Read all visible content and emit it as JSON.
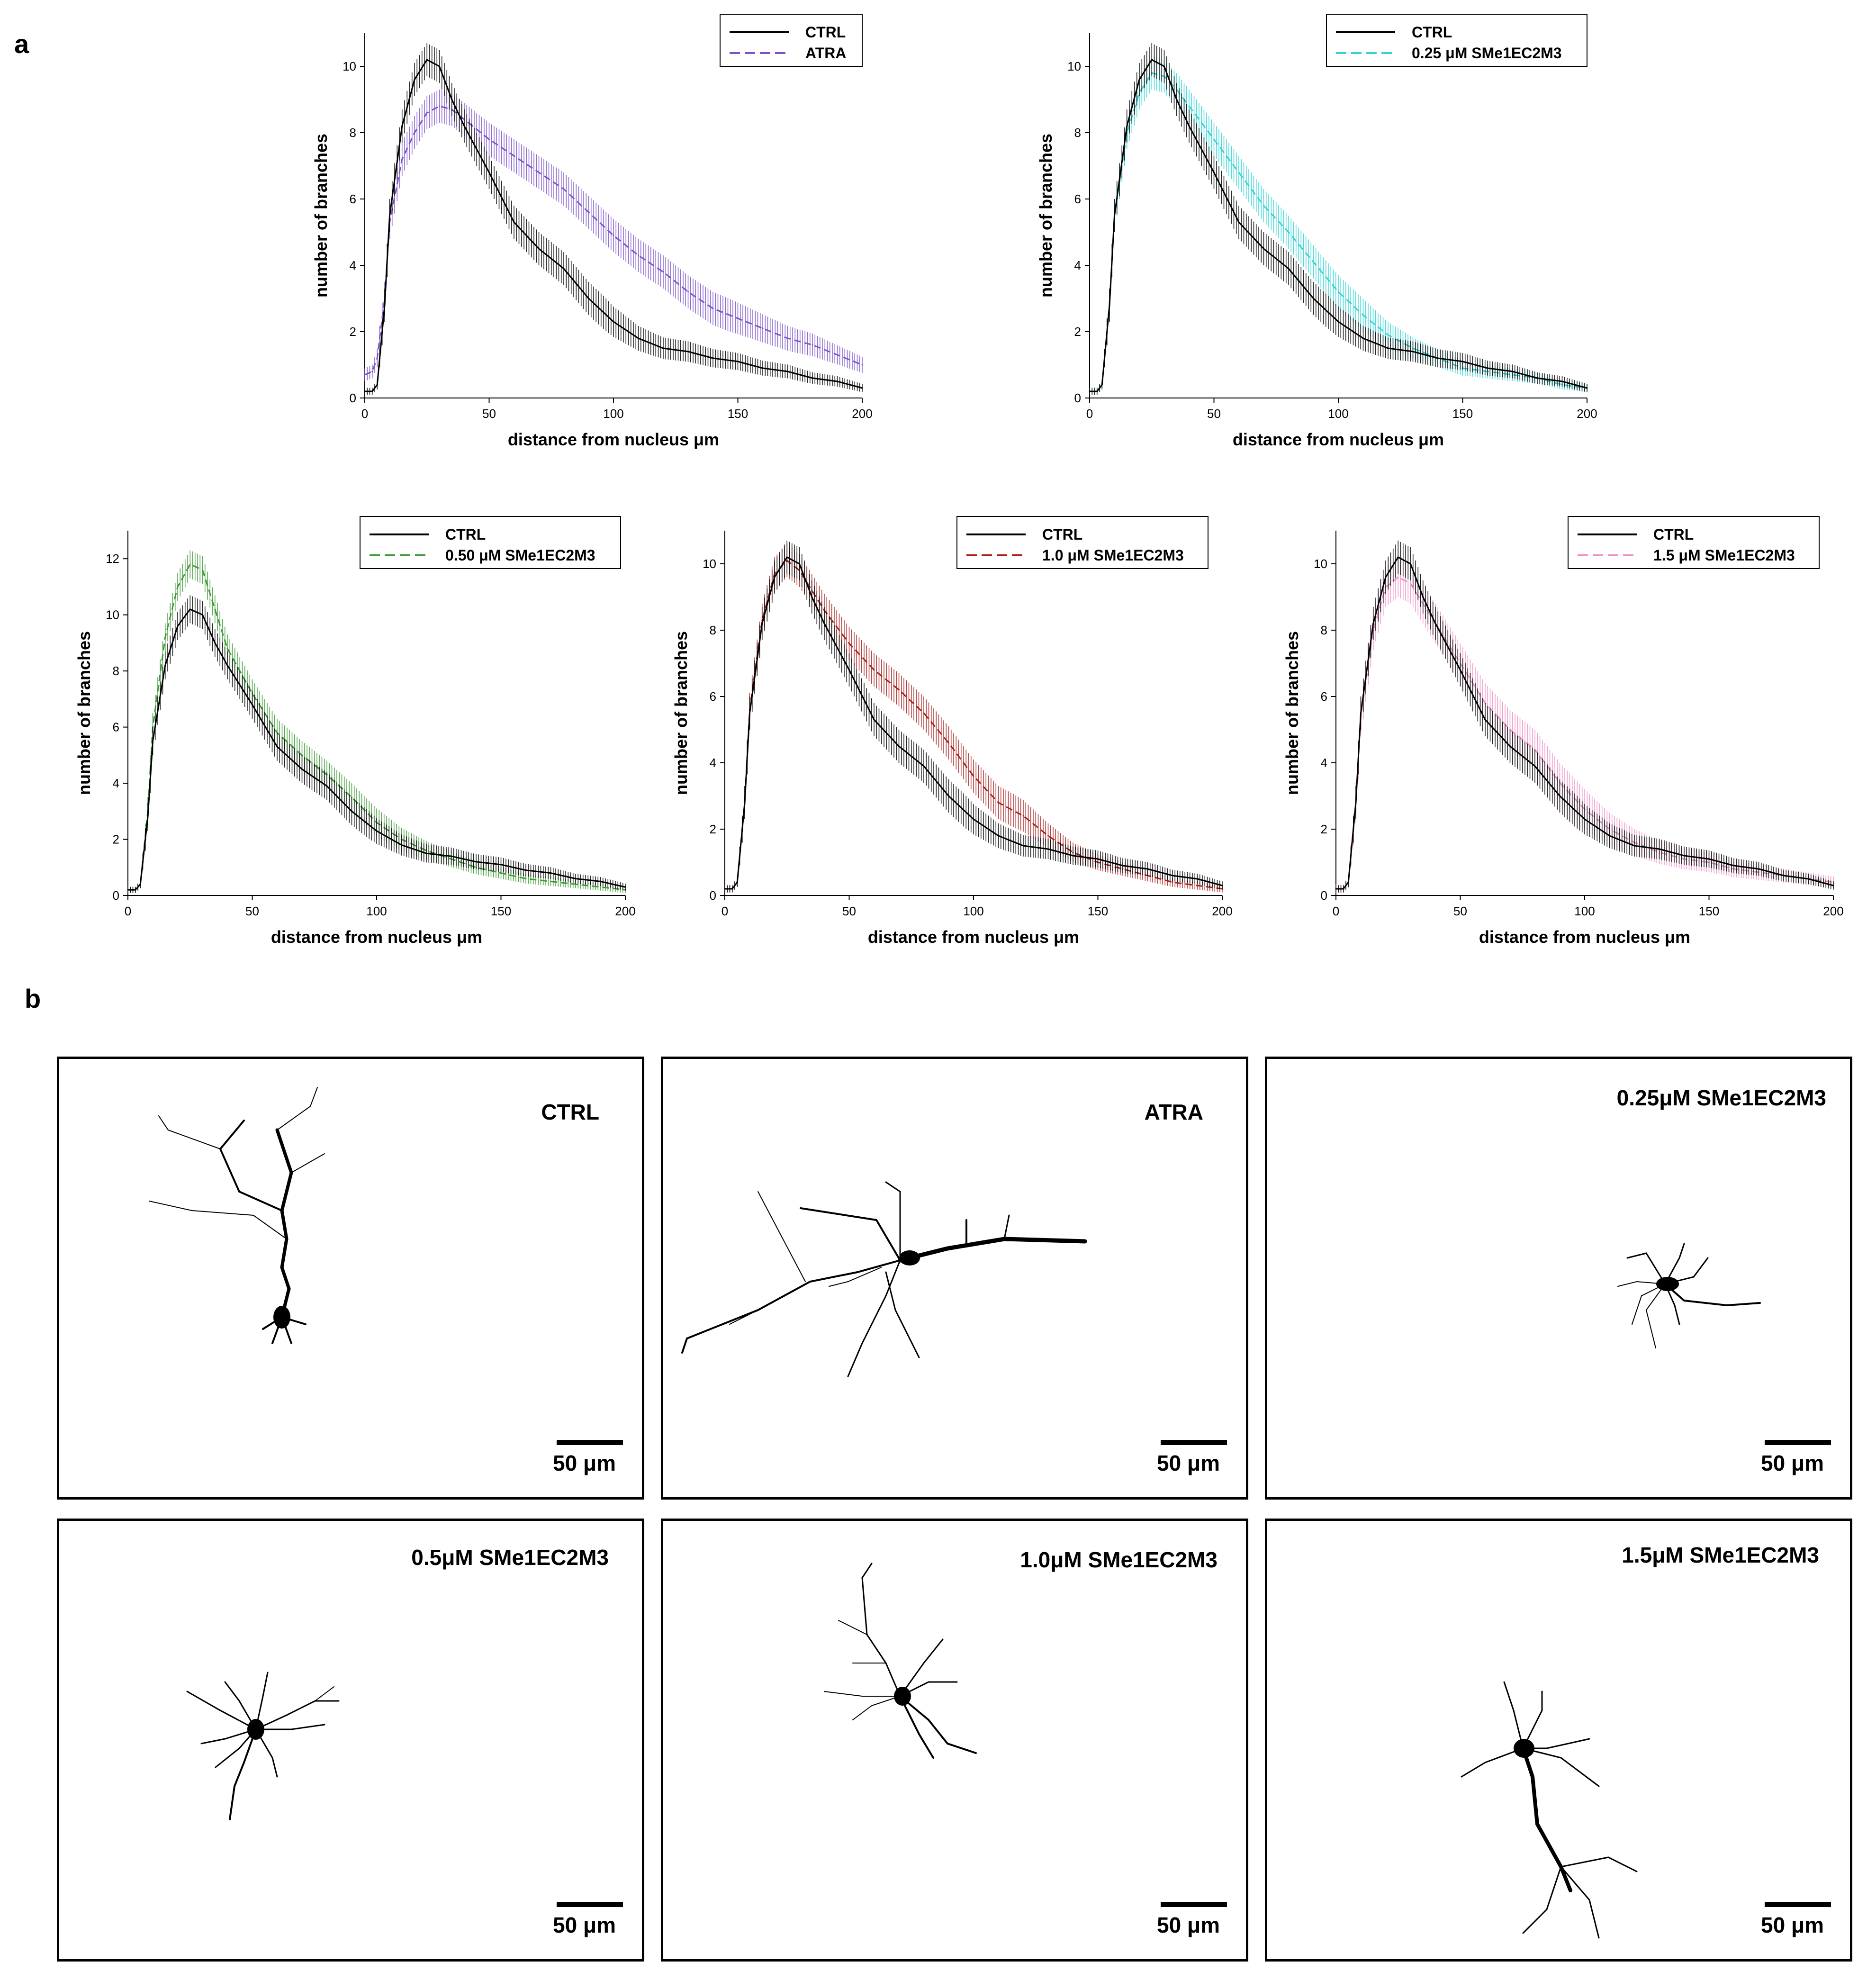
{
  "panel_labels": {
    "a": "a",
    "b": "b"
  },
  "chart_data": [
    {
      "type": "line",
      "xlabel": "distance from nucleus μm",
      "ylabel": "number of branches",
      "xlim": [
        0,
        200
      ],
      "ylim": [
        0,
        11
      ],
      "xticks": [
        "0",
        "50",
        "100",
        "150",
        "200"
      ],
      "yticks": [
        "0",
        "2",
        "4",
        "6",
        "8",
        "10"
      ],
      "x": [
        0,
        3,
        5,
        8,
        10,
        15,
        20,
        25,
        30,
        35,
        40,
        50,
        60,
        70,
        80,
        90,
        100,
        110,
        120,
        130,
        140,
        150,
        160,
        170,
        180,
        190,
        200
      ],
      "series": [
        {
          "name": "CTRL",
          "color": "#000000",
          "dash": false,
          "err": 0.5,
          "values": [
            0.2,
            0.2,
            0.4,
            2.8,
            5.5,
            8.2,
            9.6,
            10.2,
            10.0,
            9.0,
            8.2,
            6.8,
            5.3,
            4.5,
            3.9,
            3.0,
            2.3,
            1.8,
            1.5,
            1.4,
            1.2,
            1.1,
            0.9,
            0.8,
            0.6,
            0.5,
            0.3
          ]
        },
        {
          "name": "ATRA",
          "color": "#7B52C9",
          "dash": true,
          "err": 0.5,
          "values": [
            0.7,
            0.8,
            1.2,
            3.0,
            5.3,
            7.2,
            8.0,
            8.6,
            8.8,
            8.7,
            8.4,
            7.8,
            7.3,
            6.8,
            6.3,
            5.6,
            4.9,
            4.3,
            3.8,
            3.2,
            2.7,
            2.4,
            2.1,
            1.8,
            1.6,
            1.3,
            1.0
          ]
        }
      ]
    },
    {
      "type": "line",
      "xlabel": "distance from nucleus μm",
      "ylabel": "number of branches",
      "xlim": [
        0,
        200
      ],
      "ylim": [
        0,
        11
      ],
      "xticks": [
        "0",
        "50",
        "100",
        "150",
        "200"
      ],
      "yticks": [
        "0",
        "2",
        "4",
        "6",
        "8",
        "10"
      ],
      "x": [
        0,
        3,
        5,
        8,
        10,
        15,
        20,
        25,
        30,
        35,
        40,
        50,
        60,
        70,
        80,
        90,
        100,
        110,
        120,
        130,
        140,
        150,
        160,
        170,
        180,
        190,
        200
      ],
      "series": [
        {
          "name": "CTRL",
          "color": "#000000",
          "dash": false,
          "err": 0.5,
          "values": [
            0.2,
            0.2,
            0.4,
            2.8,
            5.5,
            8.2,
            9.6,
            10.2,
            10.0,
            9.0,
            8.2,
            6.8,
            5.3,
            4.5,
            3.9,
            3.0,
            2.3,
            1.8,
            1.5,
            1.4,
            1.2,
            1.1,
            0.9,
            0.8,
            0.6,
            0.5,
            0.3
          ]
        },
        {
          "name": "0.25 μM SMe1EC2M3",
          "color": "#2FD5D5",
          "dash": true,
          "err": 0.5,
          "values": [
            0.2,
            0.2,
            0.4,
            2.8,
            5.5,
            8.0,
            9.2,
            9.8,
            9.7,
            9.3,
            8.8,
            7.8,
            6.8,
            5.8,
            5.0,
            4.1,
            3.2,
            2.5,
            1.9,
            1.5,
            1.2,
            0.9,
            0.8,
            0.7,
            0.6,
            0.4,
            0.3
          ]
        }
      ]
    },
    {
      "type": "line",
      "xlabel": "distance from nucleus μm",
      "ylabel": "number of branches",
      "xlim": [
        0,
        200
      ],
      "ylim": [
        0,
        13
      ],
      "xticks": [
        "0",
        "50",
        "100",
        "150",
        "200"
      ],
      "yticks": [
        "0",
        "2",
        "4",
        "6",
        "8",
        "10",
        "12"
      ],
      "x": [
        0,
        3,
        5,
        8,
        10,
        15,
        20,
        25,
        30,
        35,
        40,
        50,
        60,
        70,
        80,
        90,
        100,
        110,
        120,
        130,
        140,
        150,
        160,
        170,
        180,
        190,
        200
      ],
      "series": [
        {
          "name": "CTRL",
          "color": "#000000",
          "dash": false,
          "err": 0.5,
          "values": [
            0.2,
            0.2,
            0.4,
            2.8,
            5.5,
            8.2,
            9.6,
            10.2,
            10.0,
            9.0,
            8.2,
            6.8,
            5.3,
            4.5,
            3.9,
            3.0,
            2.3,
            1.8,
            1.5,
            1.4,
            1.2,
            1.1,
            0.9,
            0.8,
            0.6,
            0.5,
            0.3
          ]
        },
        {
          "name": "0.50 μM SMe1EC2M3",
          "color": "#3C9A35",
          "dash": true,
          "err": 0.5,
          "values": [
            0.2,
            0.2,
            0.4,
            3.0,
            6.0,
            9.2,
            11.0,
            11.8,
            11.6,
            10.2,
            8.8,
            7.2,
            5.8,
            5.0,
            4.3,
            3.5,
            2.6,
            2.0,
            1.6,
            1.3,
            1.0,
            0.8,
            0.6,
            0.5,
            0.4,
            0.3,
            0.2
          ]
        }
      ]
    },
    {
      "type": "line",
      "xlabel": "distance from nucleus μm",
      "ylabel": "number of branches",
      "xlim": [
        0,
        200
      ],
      "ylim": [
        0,
        11
      ],
      "xticks": [
        "0",
        "50",
        "100",
        "150",
        "200"
      ],
      "yticks": [
        "0",
        "2",
        "4",
        "6",
        "8",
        "10"
      ],
      "x": [
        0,
        3,
        5,
        8,
        10,
        15,
        20,
        25,
        30,
        35,
        40,
        50,
        60,
        70,
        80,
        90,
        100,
        110,
        120,
        130,
        140,
        150,
        160,
        170,
        180,
        190,
        200
      ],
      "series": [
        {
          "name": "CTRL",
          "color": "#000000",
          "dash": false,
          "err": 0.5,
          "values": [
            0.2,
            0.2,
            0.4,
            2.8,
            5.5,
            8.2,
            9.6,
            10.2,
            10.0,
            9.0,
            8.2,
            6.8,
            5.3,
            4.5,
            3.9,
            3.0,
            2.3,
            1.8,
            1.5,
            1.4,
            1.2,
            1.1,
            0.9,
            0.8,
            0.6,
            0.5,
            0.3
          ]
        },
        {
          "name": "1.0 μM SMe1EC2M3",
          "color": "#A8201E",
          "dash": true,
          "err": 0.5,
          "values": [
            0.2,
            0.2,
            0.4,
            2.8,
            5.6,
            8.3,
            9.7,
            10.1,
            9.8,
            9.2,
            8.6,
            7.6,
            6.8,
            6.2,
            5.5,
            4.6,
            3.6,
            2.8,
            2.4,
            1.8,
            1.3,
            1.0,
            0.8,
            0.6,
            0.4,
            0.3,
            0.2
          ]
        }
      ]
    },
    {
      "type": "line",
      "xlabel": "distance from nucleus μm",
      "ylabel": "number of branches",
      "xlim": [
        0,
        200
      ],
      "ylim": [
        0,
        11
      ],
      "xticks": [
        "0",
        "50",
        "100",
        "150",
        "200"
      ],
      "yticks": [
        "0",
        "2",
        "4",
        "6",
        "8",
        "10"
      ],
      "x": [
        0,
        3,
        5,
        8,
        10,
        15,
        20,
        25,
        30,
        35,
        40,
        50,
        60,
        70,
        80,
        90,
        100,
        110,
        120,
        130,
        140,
        150,
        160,
        170,
        180,
        190,
        200
      ],
      "series": [
        {
          "name": "CTRL",
          "color": "#000000",
          "dash": false,
          "err": 0.5,
          "values": [
            0.2,
            0.2,
            0.4,
            2.8,
            5.5,
            8.2,
            9.6,
            10.2,
            10.0,
            9.0,
            8.2,
            6.8,
            5.3,
            4.5,
            3.9,
            3.0,
            2.3,
            1.8,
            1.5,
            1.4,
            1.2,
            1.1,
            0.9,
            0.8,
            0.6,
            0.5,
            0.3
          ]
        },
        {
          "name": "1.5 μM SMe1EC2M3",
          "color": "#EE8FC6",
          "dash": true,
          "err": 0.6,
          "values": [
            0.2,
            0.2,
            0.4,
            2.8,
            5.4,
            8.0,
            9.3,
            9.6,
            9.4,
            8.8,
            8.2,
            7.0,
            5.8,
            5.0,
            4.4,
            3.4,
            2.6,
            2.0,
            1.6,
            1.3,
            1.1,
            1.0,
            0.8,
            0.7,
            0.6,
            0.5,
            0.4
          ]
        }
      ]
    }
  ],
  "neurons": [
    {
      "label": "CTRL",
      "scale": "50 μm"
    },
    {
      "label": "ATRA",
      "scale": "50 μm"
    },
    {
      "label": "0.25μM SMe1EC2M3",
      "scale": "50 μm"
    },
    {
      "label": "0.5μM SMe1EC2M3",
      "scale": "50 μm"
    },
    {
      "label": "1.0μM SMe1EC2M3",
      "scale": "50 μm"
    },
    {
      "label": "1.5μM SMe1EC2M3",
      "scale": "50 μm"
    }
  ]
}
